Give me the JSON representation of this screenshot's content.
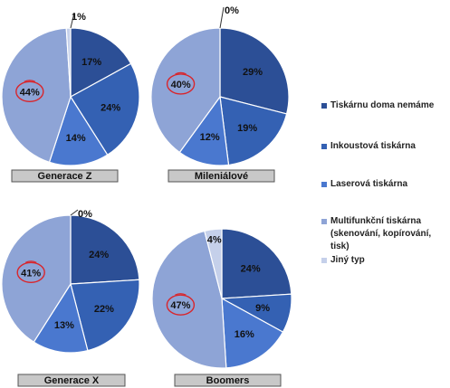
{
  "colors": {
    "tiskarnu_doma_nemame": "#2c4f96",
    "inkoustova": "#3461b3",
    "laserova": "#4a78cf",
    "multifunkcni": "#8ea4d6",
    "jiny": "#c5d0ea",
    "highlight": "#d9252b"
  },
  "legend": [
    {
      "label": "Tiskárnu doma nemáme",
      "color": "#2c4f96"
    },
    {
      "label": "Inkoustová tiskárna",
      "color": "#3461b3"
    },
    {
      "label": "Laserová tiskárna",
      "color": "#4a78cf"
    },
    {
      "label": "Multifunkční tiskárna (skenování, kopírování, tisk)",
      "color": "#8ea4d6"
    },
    {
      "label": "Jiný typ",
      "color": "#c5d0ea"
    }
  ],
  "chart_data": [
    {
      "type": "pie",
      "title": "Generace Z",
      "categories": [
        "Tiskárnu doma nemáme",
        "Inkoustová tiskárna",
        "Laserová tiskárna",
        "Multifunkční tiskárna (skenování, kopírování, tisk)",
        "Jiný typ"
      ],
      "values": [
        17,
        24,
        14,
        44,
        1
      ],
      "labels": [
        "17%",
        "24%",
        "14%",
        "44%",
        "1%"
      ],
      "highlighted": "44%"
    },
    {
      "type": "pie",
      "title": "Mileniálové",
      "categories": [
        "Tiskárnu doma nemáme",
        "Inkoustová tiskárna",
        "Laserová tiskárna",
        "Multifunkční tiskárna (skenování, kopírování, tisk)",
        "Jiný typ"
      ],
      "values": [
        29,
        19,
        12,
        40,
        0
      ],
      "labels": [
        "29%",
        "19%",
        "12%",
        "40%",
        "0%"
      ],
      "highlighted": "40%"
    },
    {
      "type": "pie",
      "title": "Generace X",
      "categories": [
        "Tiskárnu doma nemáme",
        "Inkoustová tiskárna",
        "Laserová tiskárna",
        "Multifunkční tiskárna (skenování, kopírování, tisk)",
        "Jiný typ"
      ],
      "values": [
        24,
        22,
        13,
        41,
        0
      ],
      "labels": [
        "24%",
        "22%",
        "13%",
        "41%",
        "0%"
      ],
      "highlighted": "41%"
    },
    {
      "type": "pie",
      "title": "Boomers",
      "categories": [
        "Tiskárnu doma nemáme",
        "Inkoustová tiskárna",
        "Laserová tiskárna",
        "Multifunkční tiskárna (skenování, kopírování, tisk)",
        "Jiný typ"
      ],
      "values": [
        24,
        9,
        16,
        47,
        4
      ],
      "labels": [
        "24%",
        "9%",
        "16%",
        "47%",
        "4%"
      ],
      "highlighted": "47%"
    }
  ]
}
